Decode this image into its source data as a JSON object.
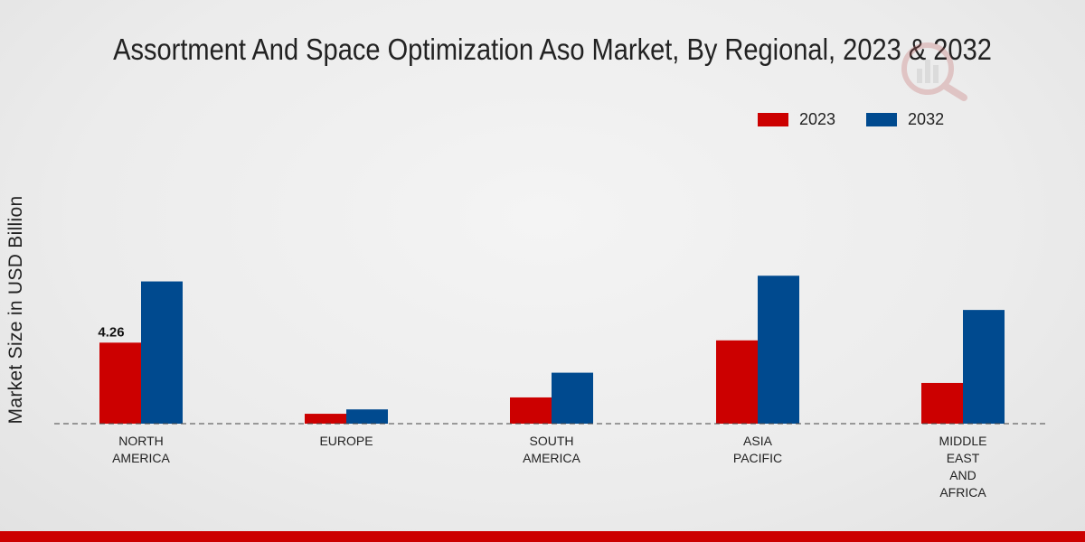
{
  "title": "Assortment And Space Optimization Aso Market, By Regional, 2023 & 2032",
  "colors": {
    "s2023": "#cc0000",
    "s2032": "#004a8f",
    "bottom_bar": "#cc0000"
  },
  "chart_data": {
    "type": "bar",
    "title": "Assortment And Space Optimization Aso Market, By Regional, 2023 & 2032",
    "xlabel": "",
    "ylabel": "Market Size in USD Billion",
    "categories": [
      [
        "NORTH",
        "AMERICA"
      ],
      [
        "EUROPE"
      ],
      [
        "SOUTH",
        "AMERICA"
      ],
      [
        "ASIA",
        "PACIFIC"
      ],
      [
        "MIDDLE",
        "EAST",
        "AND",
        "AFRICA"
      ]
    ],
    "series": [
      {
        "name": "2023",
        "color": "#cc0000",
        "values": [
          4.26,
          0.52,
          1.38,
          4.38,
          2.14
        ],
        "labels": [
          "4.26",
          null,
          null,
          null,
          null
        ]
      },
      {
        "name": "2032",
        "color": "#004a8f",
        "values": [
          7.48,
          0.75,
          2.68,
          7.78,
          5.98
        ]
      }
    ],
    "ylim": [
      0,
      12
    ],
    "grid": false,
    "legend_position": "top-right"
  }
}
